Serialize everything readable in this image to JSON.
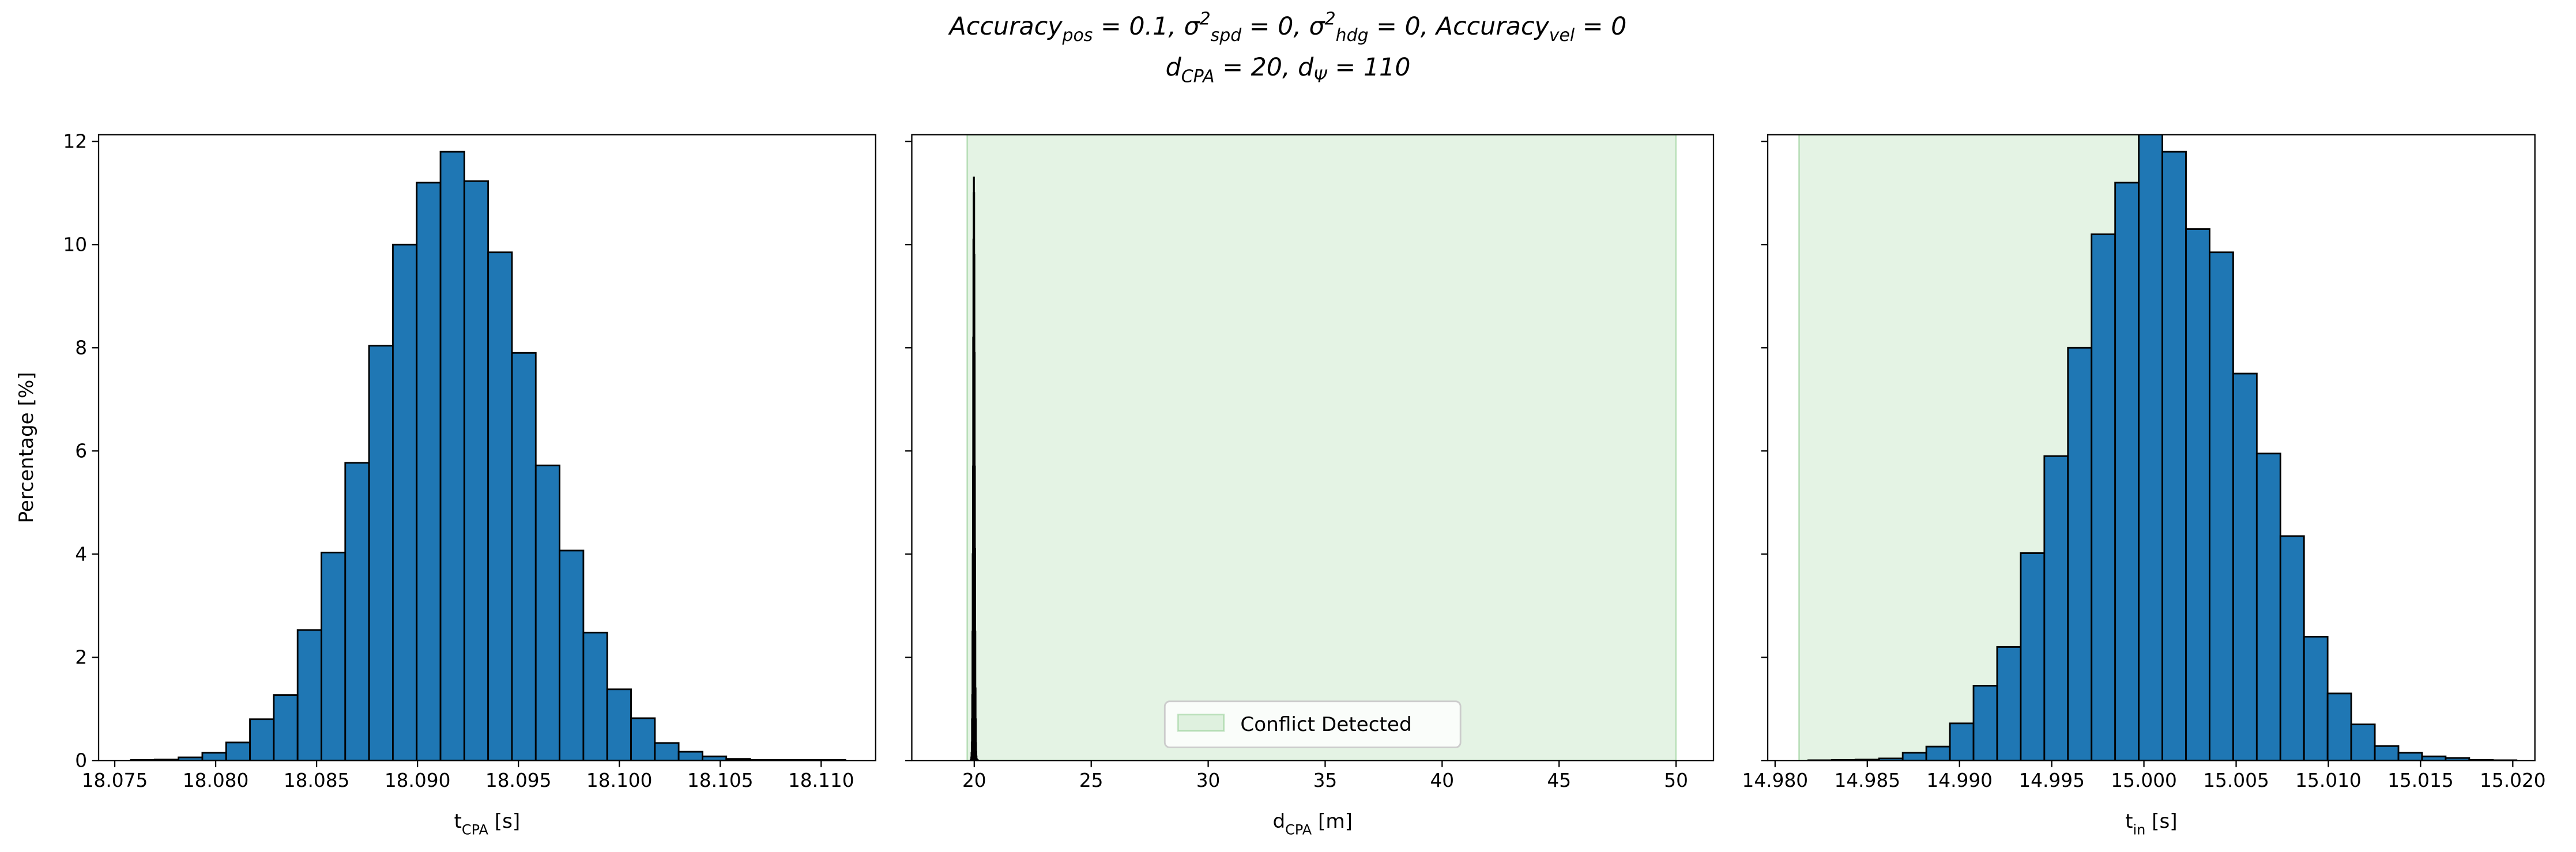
{
  "title": [
    "Accuracy_{pos} = 0.1, σ^{2}_{spd} = 0, σ^{2}_{hdg} = 0, Accuracy_{vel} = 0",
    "d_{CPA} = 20, d_{Ψ} = 110"
  ],
  "chart_data": [
    {
      "type": "histogram",
      "xlabel": "t_{CPA} [s]",
      "ylabel": "Percentage [%]",
      "color": "#1f77b4",
      "edgecolor": "#000000",
      "bins": [
        18.0758,
        18.07698,
        18.07816,
        18.07934,
        18.08052,
        18.0817,
        18.08288,
        18.08406,
        18.08524,
        18.08642,
        18.0876,
        18.08878,
        18.08996,
        18.09114,
        18.09232,
        18.0935,
        18.09468,
        18.09586,
        18.09704,
        18.09822,
        18.0994,
        18.10058,
        18.10176,
        18.10294,
        18.10412,
        18.1053,
        18.10648,
        18.10766,
        18.10884,
        18.11002,
        18.1112
      ],
      "values": [
        0.01,
        0.02,
        0.06,
        0.15,
        0.35,
        0.8,
        1.27,
        2.53,
        4.03,
        5.77,
        8.04,
        10.0,
        11.2,
        11.8,
        11.23,
        9.85,
        7.9,
        5.72,
        4.07,
        2.48,
        1.38,
        0.82,
        0.34,
        0.17,
        0.08,
        0.03,
        0.01,
        0.01,
        0.01,
        0.01
      ],
      "xlim": [
        18.0742,
        18.1127
      ],
      "xticks": [
        18.075,
        {
          "value": 18.08,
          "label": "18.080"
        },
        18.085,
        {
          "value": 18.09,
          "label": "18.090"
        },
        18.095,
        {
          "value": 18.1,
          "label": "18.100"
        },
        18.105,
        {
          "value": 18.11,
          "label": "18.110"
        }
      ],
      "ylim": [
        0,
        12.13
      ],
      "yticks": [
        0,
        2,
        4,
        6,
        8,
        10,
        12
      ]
    },
    {
      "type": "histogram",
      "xlabel": "d_{CPA} [m]",
      "color": "#1f77b4",
      "edgecolor": "#000000",
      "bins": [
        19.85,
        19.86,
        19.87,
        19.88,
        19.89,
        19.9,
        19.91,
        19.92,
        19.93,
        19.94,
        19.95,
        19.96,
        19.97,
        19.98,
        19.99,
        20.0,
        20.01,
        20.02,
        20.03,
        20.04,
        20.05,
        20.06,
        20.07,
        20.08,
        20.09,
        20.1,
        20.11,
        20.12,
        20.13,
        20.14,
        20.15
      ],
      "values": [
        0.01,
        0.02,
        0.06,
        0.15,
        0.35,
        0.8,
        1.27,
        2.5,
        4.0,
        5.7,
        8.2,
        10.1,
        11.0,
        11.3,
        11.0,
        9.8,
        7.9,
        5.7,
        4.1,
        2.5,
        1.4,
        0.8,
        0.34,
        0.17,
        0.08,
        0.03,
        0.01,
        0.01,
        0.01,
        0.01
      ],
      "spans": [
        {
          "xmin": 19.7,
          "xmax": 50,
          "color": "#2ca02c",
          "alpha": 0.13,
          "label": "Conflict Detected"
        }
      ],
      "legend": "lower center",
      "xlim": [
        17.33,
        51.6
      ],
      "xticks": [
        20,
        25,
        30,
        35,
        40,
        45,
        50
      ],
      "ylim": [
        0,
        12.13
      ]
    },
    {
      "type": "histogram",
      "xlabel": "t_{in} [s]",
      "color": "#1f77b4",
      "edgecolor": "#000000",
      "bins": [
        14.9818,
        14.98308,
        14.98436,
        14.98564,
        14.98692,
        14.9882,
        14.98948,
        14.99076,
        14.99204,
        14.99332,
        14.9946,
        14.99588,
        14.99716,
        14.99844,
        14.99972,
        15.001,
        15.00228,
        15.00356,
        15.00484,
        15.00612,
        15.0074,
        15.00868,
        15.00996,
        15.01124,
        15.01252,
        15.0138,
        15.01508,
        15.01636,
        15.01764,
        15.01892,
        15.0202
      ],
      "values": [
        0.005,
        0.01,
        0.02,
        0.04,
        0.15,
        0.27,
        0.72,
        1.45,
        2.2,
        4.02,
        5.9,
        8.0,
        10.2,
        11.2,
        12.2,
        11.8,
        10.3,
        9.85,
        7.5,
        5.95,
        4.35,
        2.4,
        1.3,
        0.7,
        0.28,
        0.15,
        0.08,
        0.05,
        0.01,
        0.005
      ],
      "spans": [
        {
          "xmin": 14.9813,
          "xmax": 15.0,
          "color": "#2ca02c",
          "alpha": 0.13
        }
      ],
      "xlim": [
        14.9796,
        15.0212
      ],
      "xticks": [
        {
          "value": 14.98,
          "label": "14.980"
        },
        14.985,
        {
          "value": 14.99,
          "label": "14.990"
        },
        14.995,
        {
          "value": 15.0,
          "label": "15.000"
        },
        15.005,
        {
          "value": 15.01,
          "label": "15.010"
        },
        15.015,
        {
          "value": 15.02,
          "label": "15.020"
        }
      ],
      "ylim": [
        0,
        12.13
      ]
    }
  ]
}
